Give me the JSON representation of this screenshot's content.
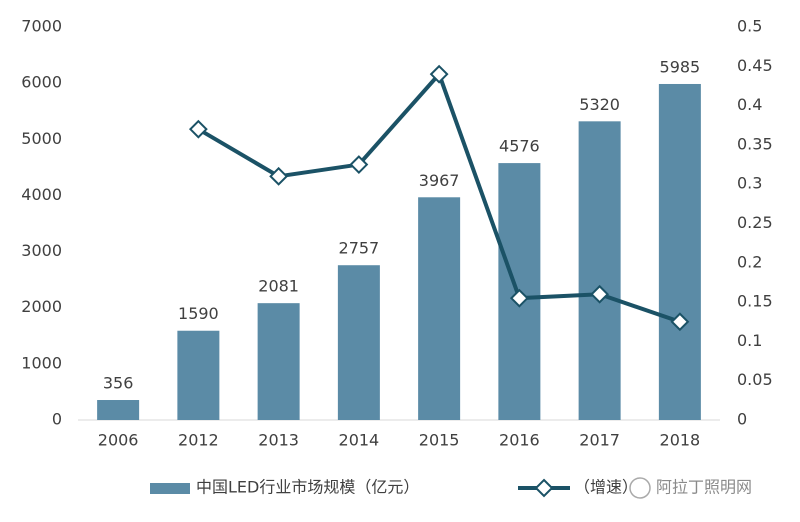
{
  "chart_data": {
    "type": "bar",
    "categories": [
      "2006",
      "2012",
      "2013",
      "2014",
      "2015",
      "2016",
      "2017",
      "2018"
    ],
    "series": [
      {
        "name": "中国LED行业市场规模（亿元）",
        "color": "#5b8ba6",
        "values": [
          356,
          1590,
          2081,
          2757,
          3967,
          4576,
          5320,
          5985
        ]
      },
      {
        "name": "（增速）",
        "type": "line",
        "axis": "y2",
        "color": "#1b5266",
        "values": [
          null,
          0.37,
          0.31,
          0.325,
          0.44,
          0.155,
          0.16,
          0.125
        ]
      }
    ],
    "ylim": [
      0,
      7000
    ],
    "yticks": [
      0,
      1000,
      2000,
      3000,
      4000,
      5000,
      6000,
      7000
    ],
    "y2lim": [
      0,
      0.5
    ],
    "y2ticks": [
      0,
      0.05,
      0.1,
      0.15,
      0.2,
      0.25,
      0.3,
      0.35,
      0.4,
      0.45,
      0.5
    ],
    "watermark": "阿拉丁照明网"
  }
}
